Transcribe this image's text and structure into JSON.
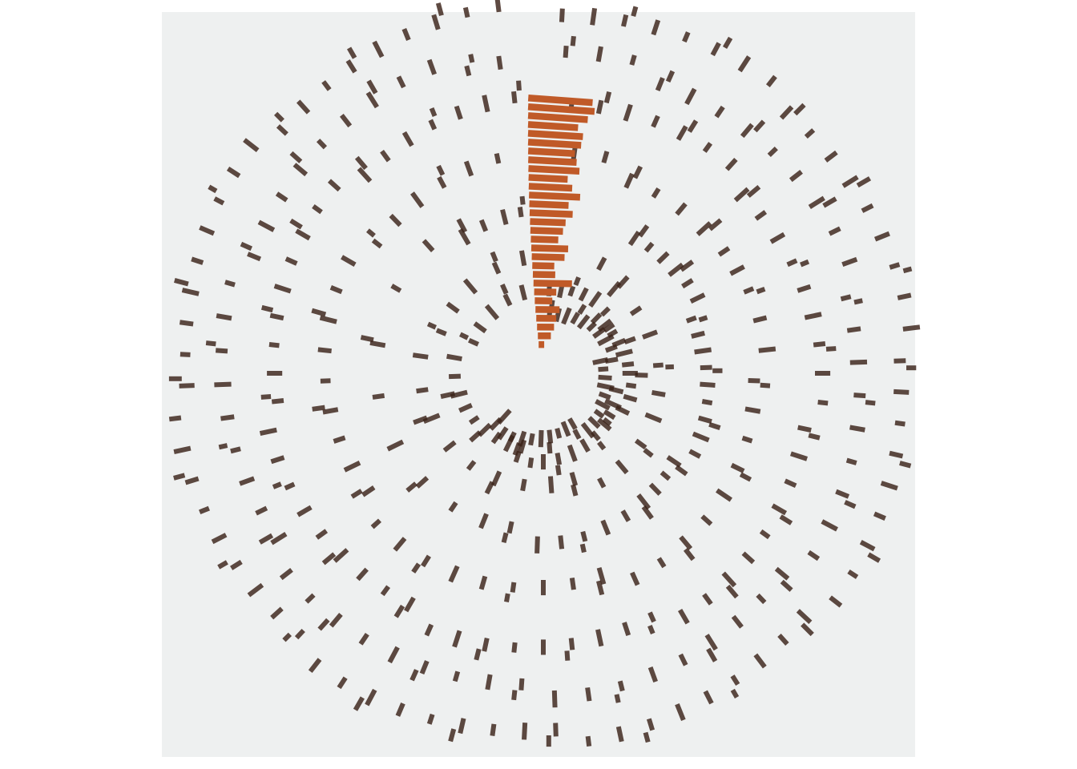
{
  "chart_data": {
    "type": "bar",
    "coordinate_system": "polar",
    "description_free": true,
    "title": "",
    "xlabel": "",
    "ylabel": "",
    "colors": {
      "panel_background": "#eef0f0",
      "highlight_bar": "#c05a28",
      "segment": "#3a2218",
      "segment_opacity": 0.82
    },
    "highlight_bars": {
      "comment": "",
      "values": [
        0.0,
        0.012,
        0.018,
        0.022,
        0.028,
        0.015,
        0.022,
        0.05,
        0.02,
        0.018,
        0.036,
        0.042,
        0.024,
        0.032,
        0.036,
        0.048,
        0.04,
        0.06,
        0.045,
        0.036,
        0.056,
        0.05,
        0.046,
        0.056,
        0.058,
        0.048,
        0.064,
        0.075,
        0.07
      ]
    },
    "segments": {
      "rings": [
        {
          "radius": 0.068,
          "angles": [
            6,
            14,
            22,
            30,
            38,
            46,
            54,
            62,
            70,
            78,
            86,
            94,
            102,
            110,
            118,
            126,
            134,
            142,
            150,
            158,
            166,
            174,
            182,
            190,
            198,
            206,
            214,
            222
          ]
        },
        {
          "radius": 0.1,
          "angles": [
            4,
            12,
            19,
            27,
            35,
            44,
            52,
            60,
            68,
            76,
            84,
            90,
            98,
            106,
            114,
            122,
            130,
            140,
            150,
            160,
            170,
            180,
            188,
            196,
            206,
            216,
            226,
            236,
            246,
            256,
            268,
            280,
            294,
            306,
            320,
            334,
            346
          ]
        },
        {
          "radius": 0.16,
          "angles": [
            28,
            40,
            56,
            70,
            86,
            100,
            112,
            126,
            140,
            152,
            164,
            176,
            190,
            204,
            218,
            232,
            248,
            262,
            278,
            292,
            306,
            320,
            336,
            350
          ]
        },
        {
          "radius": 0.245,
          "angles": [
            34,
            40,
            46,
            52,
            58,
            64,
            70,
            76,
            82,
            88,
            94,
            100,
            106,
            112,
            118,
            124,
            130,
            136,
            142,
            150,
            158,
            166,
            174,
            182,
            192,
            202,
            214,
            228,
            244,
            262,
            280,
            300,
            318,
            330,
            338,
            346,
            352
          ]
        },
        {
          "radius": 0.34,
          "angles": [
            8,
            16,
            24,
            32,
            40,
            48,
            56,
            62,
            68,
            76,
            84,
            92,
            100,
            108,
            116,
            124,
            132,
            140,
            148,
            156,
            164,
            172,
            180,
            188,
            196,
            204,
            212,
            220,
            228,
            236,
            244,
            252,
            260,
            268,
            276,
            284,
            292,
            300,
            308,
            316,
            324,
            332,
            340,
            348
          ]
        },
        {
          "radius": 0.44,
          "angles": [
            6,
            12,
            18,
            24,
            30,
            36,
            42,
            48,
            54,
            60,
            66,
            72,
            78,
            84,
            90,
            96,
            102,
            108,
            114,
            120,
            126,
            132,
            138,
            144,
            150,
            156,
            162,
            168,
            174,
            180,
            186,
            192,
            198,
            204,
            210,
            216,
            222,
            228,
            234,
            240,
            246,
            252,
            258,
            264,
            270,
            276,
            282,
            288,
            294,
            300,
            306,
            312,
            318,
            324,
            330,
            336,
            342,
            348,
            354
          ]
        },
        {
          "radius": 0.52,
          "angles": [
            4,
            10,
            16,
            22,
            28,
            34,
            40,
            46,
            52,
            58,
            64,
            70,
            76,
            82,
            88,
            94,
            100,
            106,
            112,
            118,
            124,
            130,
            136,
            142,
            148,
            154,
            160,
            166,
            172,
            178,
            184,
            190,
            196,
            202,
            208,
            214,
            220,
            226,
            232,
            238,
            244,
            250,
            256,
            262,
            268,
            274,
            280,
            286,
            292,
            298,
            304,
            310,
            316,
            322,
            328,
            334,
            340,
            346,
            352
          ]
        },
        {
          "radius": 0.6,
          "angles": [
            3,
            8,
            13,
            18,
            23,
            28,
            33,
            38,
            43,
            48,
            53,
            58,
            63,
            68,
            73,
            78,
            83,
            88,
            93,
            98,
            103,
            108,
            113,
            118,
            123,
            128,
            133,
            138,
            143,
            148,
            153,
            158,
            163,
            168,
            173,
            178,
            183,
            188,
            193,
            198,
            203,
            208,
            213,
            218,
            223,
            228,
            233,
            238,
            243,
            248,
            253,
            258,
            263,
            268,
            273,
            278,
            283,
            288,
            293,
            298,
            303,
            308,
            313,
            318,
            323,
            328,
            333,
            338,
            343,
            348,
            353
          ]
        }
      ]
    }
  }
}
